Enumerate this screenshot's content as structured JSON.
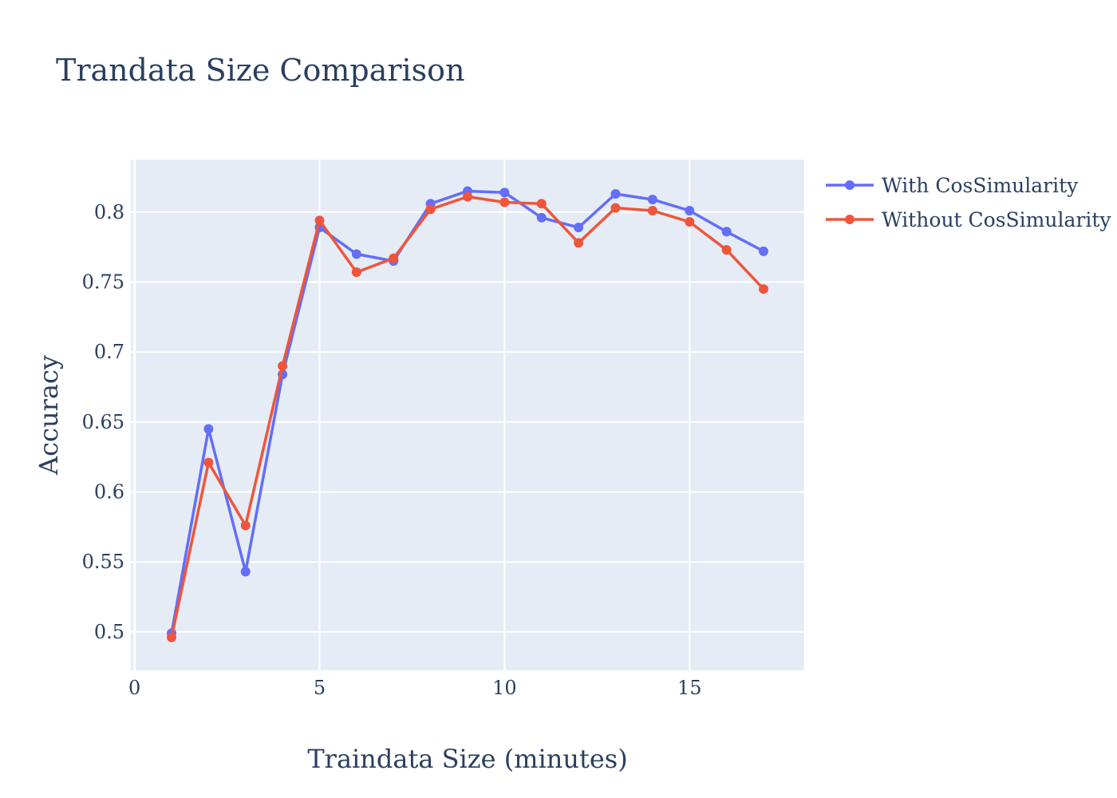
{
  "chart_data": {
    "type": "line",
    "title": "Trandata Size Comparison",
    "xlabel": "Traindata Size (minutes)",
    "ylabel": "Accuracy",
    "xlim": [
      -0.1,
      18.1
    ],
    "ylim": [
      0.4725,
      0.8375
    ],
    "x_ticks": [
      0,
      5,
      10,
      15
    ],
    "x_tick_labels": [
      "0",
      "5",
      "10",
      "15"
    ],
    "y_ticks": [
      0.5,
      0.55,
      0.6,
      0.65,
      0.7,
      0.75,
      0.8
    ],
    "y_tick_labels": [
      "0.5",
      "0.55",
      "0.6",
      "0.65",
      "0.7",
      "0.75",
      "0.8"
    ],
    "grid": true,
    "legend_position": "top-right outside plot",
    "x": [
      1,
      2,
      3,
      4,
      5,
      6,
      7,
      8,
      9,
      10,
      11,
      12,
      13,
      14,
      15,
      16,
      17
    ],
    "series": [
      {
        "name": "With CosSimularity",
        "color": "#636efa",
        "values": [
          0.499,
          0.645,
          0.543,
          0.684,
          0.789,
          0.77,
          0.765,
          0.806,
          0.815,
          0.814,
          0.796,
          0.789,
          0.813,
          0.809,
          0.801,
          0.786,
          0.772
        ]
      },
      {
        "name": "Without CosSimularity",
        "color": "#ef553b",
        "values": [
          0.496,
          0.621,
          0.576,
          0.69,
          0.794,
          0.757,
          0.767,
          0.802,
          0.811,
          0.807,
          0.806,
          0.778,
          0.803,
          0.801,
          0.793,
          0.773,
          0.745
        ]
      }
    ],
    "colors": {
      "plot_background": "#e5ecf6",
      "grid": "#ffffff",
      "text": "#2a3f5f"
    }
  }
}
